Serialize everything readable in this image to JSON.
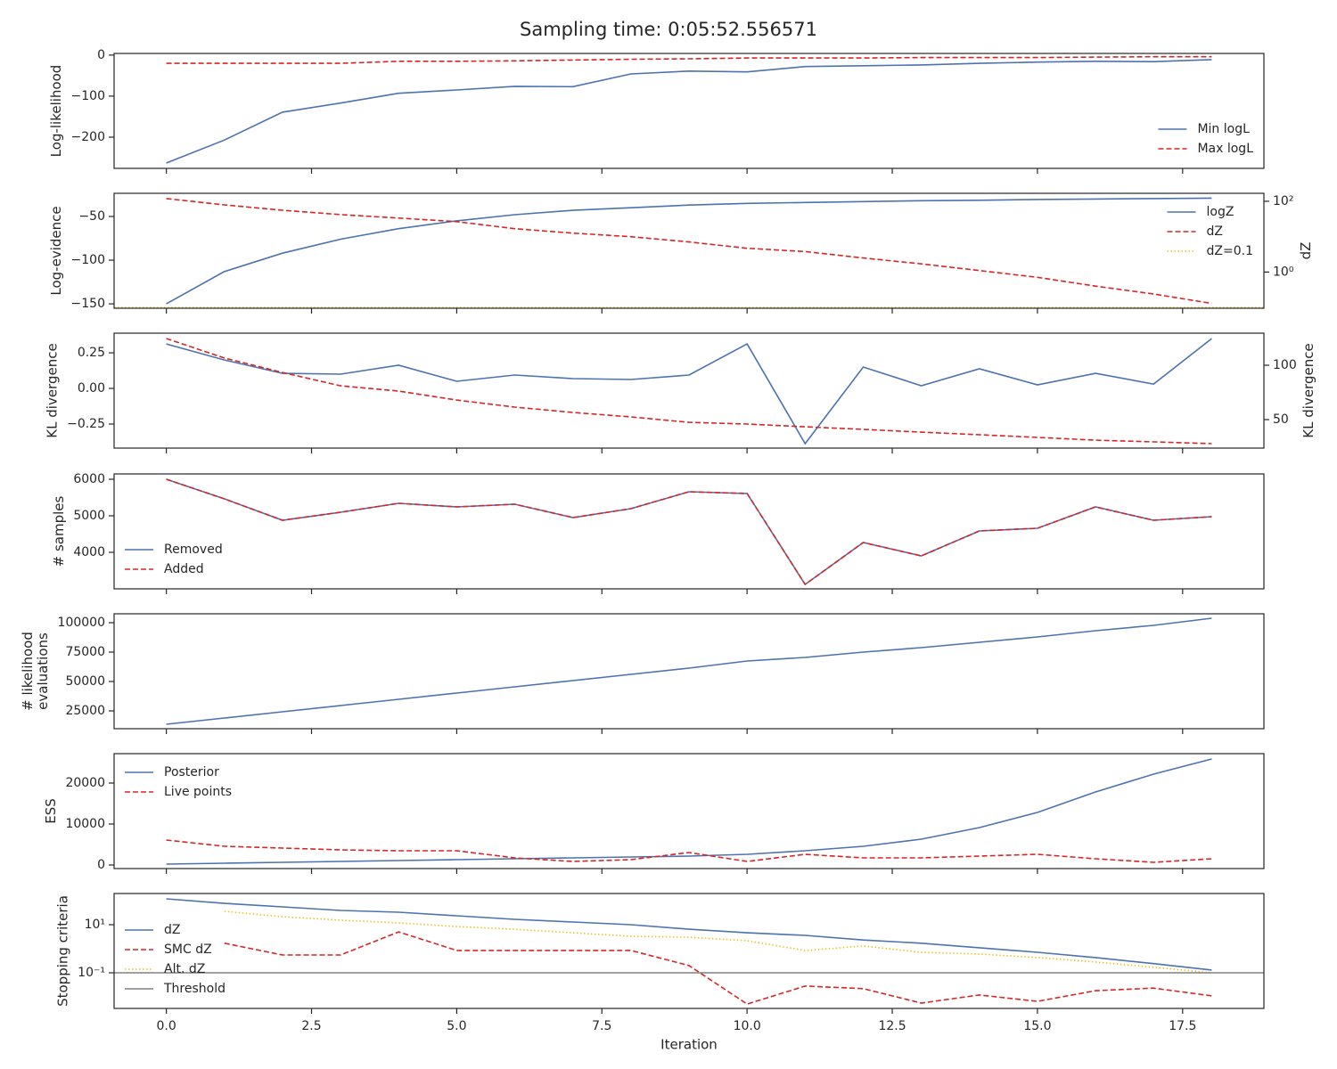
{
  "title": "Sampling time: 0:05:52.556571",
  "chart_data": [
    {
      "type": "line",
      "ylabel": "Log-likelihood",
      "x": [
        0,
        1,
        2,
        3,
        4,
        5,
        6,
        7,
        8,
        9,
        10,
        11,
        12,
        13,
        14,
        15,
        16,
        17,
        18
      ],
      "ylim": [
        -276,
        4
      ],
      "yticks": [
        {
          "value": -200,
          "label": "−200"
        },
        {
          "value": -100,
          "label": "−100"
        },
        0
      ],
      "legend": "lower right",
      "series": [
        {
          "name": "Min logL",
          "color": "#4c72b0",
          "style": "solid",
          "values": [
            -263,
            -207,
            -139,
            -117,
            -93,
            -85,
            -76,
            -77,
            -46,
            -39,
            -41,
            -28,
            -26,
            -24,
            -20,
            -17,
            -15,
            -16,
            -11
          ]
        },
        {
          "name": "Max logL",
          "color": "#d62728",
          "style": "dashed",
          "values": [
            -20,
            -20,
            -20,
            -20,
            -15,
            -15,
            -14,
            -12,
            -10,
            -9,
            -7,
            -7,
            -7,
            -6,
            -6,
            -6,
            -5,
            -4,
            -4
          ]
        }
      ]
    },
    {
      "type": "line",
      "ylabel": "Log-evidence",
      "y2label": "dZ",
      "x": [
        0,
        1,
        2,
        3,
        4,
        5,
        6,
        7,
        8,
        9,
        10,
        11,
        12,
        13,
        14,
        15,
        16,
        17,
        18
      ],
      "ylim": [
        -155,
        -23.5
      ],
      "yticks": [
        {
          "value": -150,
          "label": "−150"
        },
        {
          "value": -100,
          "label": "−100"
        },
        {
          "value": -50,
          "label": "−50"
        }
      ],
      "y2lim": [
        0.095,
        168
      ],
      "y2log": true,
      "y2ticks": [
        {
          "value": 1,
          "label": "10⁰"
        },
        {
          "value": 100,
          "label": "10²"
        }
      ],
      "legend": "upper right",
      "series": [
        {
          "name": "logZ",
          "color": "#4c72b0",
          "style": "solid",
          "values": [
            -150,
            -113,
            -92,
            -76,
            -64,
            -55,
            -48,
            -43,
            -40,
            -37,
            -35,
            -34,
            -33,
            -32,
            -31.5,
            -30.5,
            -30,
            -29.5,
            -29
          ]
        },
        {
          "name": "dZ",
          "color": "#d62728",
          "style": "dashed",
          "axis": "y2",
          "values": [
            119,
            79,
            56,
            42,
            33.5,
            26.6,
            16.8,
            12.6,
            10,
            7.1,
            4.7,
            3.8,
            2.5,
            1.7,
            1.1,
            0.71,
            0.4,
            0.24,
            0.13
          ]
        }
      ],
      "hlines": [
        {
          "name": "dZ=0.1",
          "color": "#f0c020",
          "style": "dotted",
          "axis": "y2",
          "value": 0.1
        }
      ]
    },
    {
      "type": "line",
      "ylabel": "KL divergence",
      "y2label": "KL divergence",
      "x": [
        0,
        1,
        2,
        3,
        4,
        5,
        6,
        7,
        8,
        9,
        10,
        11,
        12,
        13,
        14,
        15,
        16,
        17,
        18
      ],
      "ylim": [
        -0.419,
        0.388
      ],
      "yticks": [
        {
          "value": -0.25,
          "label": "−0.25"
        },
        {
          "value": 0,
          "label": "0.00"
        },
        0.25
      ],
      "y2lim": [
        23.8,
        129.5
      ],
      "y2ticks": [
        50,
        100
      ],
      "series": [
        {
          "color": "#4c72b0",
          "style": "solid",
          "values": [
            0.3125,
            0.2,
            0.106,
            0.1,
            0.1625,
            0.05,
            0.094,
            0.069,
            0.0625,
            0.094,
            0.3125,
            -0.3875,
            0.15,
            0.019,
            0.1375,
            0.025,
            0.106,
            0.031,
            0.35
          ]
        },
        {
          "color": "#d62728",
          "style": "dashed",
          "axis": "y2",
          "values": [
            124.6,
            106.6,
            93.4,
            81.1,
            76.2,
            68,
            61.5,
            56.6,
            52.5,
            47.5,
            45.9,
            43.4,
            41,
            38.5,
            36.1,
            33.6,
            31.1,
            29.5,
            27.9
          ]
        }
      ]
    },
    {
      "type": "line",
      "ylabel": "# samples",
      "x": [
        0,
        1,
        2,
        3,
        4,
        5,
        6,
        7,
        8,
        9,
        10,
        11,
        12,
        13,
        14,
        15,
        16,
        17,
        18
      ],
      "ylim": [
        3000,
        6146
      ],
      "yticks": [
        4000,
        5000,
        6000
      ],
      "legend": "lower left",
      "series": [
        {
          "name": "Removed",
          "color": "#4c72b0",
          "style": "solid",
          "values": [
            6000,
            5463,
            4878,
            5098,
            5341,
            5244,
            5317,
            4951,
            5195,
            5659,
            5610,
            3122,
            4268,
            3902,
            4585,
            4659,
            5244,
            4878,
            4976
          ]
        },
        {
          "name": "Added",
          "color": "#d62728",
          "style": "dashed",
          "values": [
            6000,
            5463,
            4878,
            5098,
            5341,
            5244,
            5317,
            4951,
            5195,
            5659,
            5610,
            3122,
            4268,
            3902,
            4585,
            4659,
            5244,
            4878,
            4976
          ]
        }
      ]
    },
    {
      "type": "line",
      "ylabel": [
        "# likelihood",
        "evaluations"
      ],
      "x": [
        0,
        1,
        2,
        3,
        4,
        5,
        6,
        7,
        8,
        9,
        10,
        11,
        12,
        13,
        14,
        15,
        16,
        17,
        18
      ],
      "ylim": [
        9850,
        107576
      ],
      "yticks": [
        25000,
        50000,
        75000,
        100000
      ],
      "series": [
        {
          "color": "#4c72b0",
          "style": "solid",
          "values": [
            13636,
            18939,
            24242,
            29545,
            34848,
            40152,
            45455,
            50758,
            56061,
            61364,
            67424,
            70455,
            75000,
            78788,
            83333,
            87879,
            93182,
            97727,
            103788
          ]
        }
      ]
    },
    {
      "type": "line",
      "ylabel": "ESS",
      "x": [
        0,
        1,
        2,
        3,
        4,
        5,
        6,
        7,
        8,
        9,
        10,
        11,
        12,
        13,
        14,
        15,
        16,
        17,
        18
      ],
      "ylim": [
        -870,
        27174
      ],
      "yticks": [
        0,
        10000,
        20000
      ],
      "legend": "upper left",
      "series": [
        {
          "name": "Posterior",
          "color": "#4c72b0",
          "style": "solid",
          "values": [
            217,
            435,
            650,
            870,
            1087,
            1304,
            1522,
            1739,
            1957,
            2174,
            2609,
            3478,
            4565,
            6304,
            9130,
            12826,
            17826,
            22174,
            25870
          ]
        },
        {
          "name": "Live points",
          "color": "#d62728",
          "style": "dashed",
          "values": [
            6087,
            4565,
            4130,
            3696,
            3478,
            3478,
            1739,
            870,
            1304,
            3043,
            870,
            2609,
            1739,
            1739,
            2174,
            2609,
            1522,
            652,
            1522
          ]
        }
      ]
    },
    {
      "type": "line",
      "ylabel": "Stopping criteria",
      "xlabel": "Iteration",
      "x": [
        0,
        1,
        2,
        3,
        4,
        5,
        6,
        7,
        8,
        9,
        10,
        11,
        12,
        13,
        14,
        15,
        16,
        17,
        18
      ],
      "ylim": [
        0.0033,
        198
      ],
      "ylog": true,
      "yticks": [
        {
          "value": 0.1,
          "label": "10⁻¹"
        },
        {
          "value": 10,
          "label": "10¹"
        }
      ],
      "xlim": [
        -0.9,
        18.9
      ],
      "xticks": [
        {
          "value": 0,
          "label": "0.0"
        },
        {
          "value": 2.5,
          "label": "2.5"
        },
        {
          "value": 5,
          "label": "5.0"
        },
        {
          "value": 7.5,
          "label": "7.5"
        },
        {
          "value": 10,
          "label": "10.0"
        },
        {
          "value": 12.5,
          "label": "12.5"
        },
        {
          "value": 15,
          "label": "15.0"
        },
        {
          "value": 17.5,
          "label": "17.5"
        }
      ],
      "legend": "lower left",
      "series": [
        {
          "name": "dZ",
          "color": "#4c72b0",
          "style": "solid",
          "values": [
            119,
            77,
            55,
            39,
            33,
            23.5,
            16.7,
            12.9,
            10,
            6.5,
            4.6,
            3.6,
            2.3,
            1.7,
            1.1,
            0.71,
            0.43,
            0.24,
            0.13
          ]
        },
        {
          "name": "SMC dZ",
          "color": "#d62728",
          "style": "dashed",
          "values": [
            null,
            1.7,
            0.55,
            0.55,
            5.0,
            0.85,
            0.85,
            0.85,
            0.85,
            0.2,
            0.005,
            0.028,
            0.022,
            0.0055,
            0.012,
            0.0065,
            0.018,
            0.023,
            0.011
          ]
        },
        {
          "name": "Alt. dZ",
          "color": "#f0c020",
          "style": "dotted",
          "values": [
            null,
            36,
            21.5,
            15.3,
            11.9,
            8.4,
            6.5,
            4.6,
            3.3,
            3.0,
            2.15,
            0.84,
            1.3,
            0.71,
            0.6,
            0.43,
            0.28,
            0.17,
            0.1
          ]
        }
      ],
      "hlines": [
        {
          "name": "Threshold",
          "color": "#808080",
          "style": "solid",
          "value": 0.1
        }
      ]
    }
  ]
}
